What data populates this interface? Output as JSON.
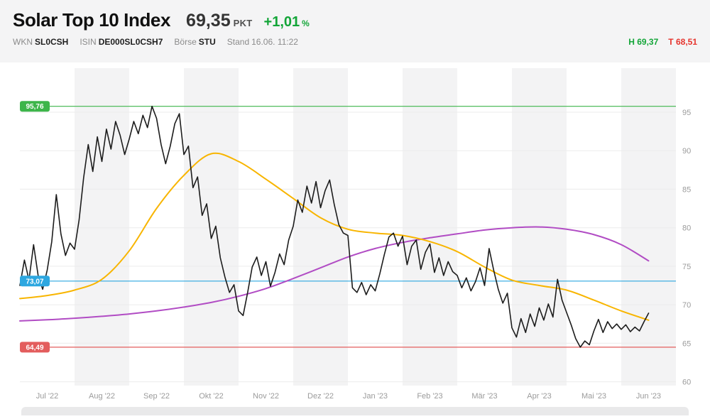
{
  "header": {
    "title": "Solar Top 10 Index",
    "price": "69,35",
    "unit": "PKT",
    "change": "+1,01",
    "change_unit": "%",
    "meta": [
      {
        "label": "WKN",
        "value": "SL0CSH"
      },
      {
        "label": "ISIN",
        "value": "DE000SL0CSH7"
      },
      {
        "label": "Börse",
        "value": "STU"
      },
      {
        "label": "Stand",
        "value": "16.06. 11:22"
      }
    ],
    "high_label": "H",
    "high_value": "69,37",
    "low_label": "T",
    "low_value": "68,51"
  },
  "colors": {
    "positive": "#13a538",
    "negative": "#e6352e",
    "stripe": "#f3f3f4",
    "grid": "#ececec",
    "tick_text": "#9b9b9b",
    "badge_text": "#ffffff"
  },
  "chart_data": {
    "type": "line",
    "title": "Solar Top 10 Index",
    "unit": "PKT",
    "x_labels": [
      "Jul '22",
      "Aug '22",
      "Sep '22",
      "Okt '22",
      "Nov '22",
      "Dez '22",
      "Jan '23",
      "Feb '23",
      "Mär '23",
      "Apr '23",
      "Mai '23",
      "Jun '23"
    ],
    "y_ticks": [
      60,
      65,
      70,
      75,
      80,
      85,
      90,
      95
    ],
    "ylim": [
      59.5,
      98.5
    ],
    "months_shown": 12,
    "months_with_data": 11.5,
    "grid": true,
    "legend": "none",
    "reference_lines": [
      {
        "name": "high-line",
        "value": 95.76,
        "label": "95,76",
        "color": "#3db54a"
      },
      {
        "name": "mid-line",
        "value": 73.07,
        "label": "73,07",
        "color": "#2da7e0"
      },
      {
        "name": "low-line",
        "value": 64.49,
        "label": "64,49",
        "color": "#e35d5d"
      }
    ],
    "series": [
      {
        "name": "ma-slow",
        "color": "#b14cc4",
        "width": 2,
        "smooth": true,
        "values": [
          67.9,
          68.05,
          68.25,
          68.5,
          68.8,
          69.2,
          69.7,
          70.3,
          71.1,
          72.1,
          73.4,
          74.8,
          76.2,
          77.3,
          78.1,
          78.7,
          79.2,
          79.7,
          80.0,
          80.1,
          79.8,
          79.1,
          77.8,
          75.7
        ]
      },
      {
        "name": "ma-fast",
        "color": "#f8b500",
        "width": 2,
        "smooth": true,
        "values": [
          70.8,
          71.2,
          71.9,
          73.3,
          77.0,
          82.5,
          86.8,
          89.6,
          88.6,
          86.3,
          83.8,
          81.3,
          79.8,
          79.3,
          79.0,
          78.2,
          76.9,
          74.9,
          73.2,
          72.5,
          71.9,
          70.6,
          69.2,
          68.0
        ]
      },
      {
        "name": "index-price",
        "color": "#1c1c1c",
        "width": 1.6,
        "smooth": false,
        "values": [
          72.5,
          75.8,
          73.2,
          77.8,
          73.8,
          72.0,
          74.5,
          78.2,
          84.3,
          79.2,
          76.4,
          78.0,
          77.2,
          81.0,
          86.5,
          90.8,
          87.3,
          91.8,
          88.6,
          92.8,
          90.2,
          93.8,
          92.0,
          89.5,
          91.5,
          93.8,
          92.2,
          94.6,
          93.0,
          95.76,
          94.2,
          90.8,
          88.3,
          90.6,
          93.5,
          94.8,
          89.5,
          90.6,
          85.2,
          86.6,
          81.6,
          83.1,
          78.6,
          80.2,
          76.1,
          73.6,
          71.6,
          72.6,
          69.2,
          68.6,
          71.6,
          74.9,
          76.2,
          73.8,
          75.6,
          72.4,
          74.2,
          76.6,
          75.2,
          78.4,
          80.2,
          83.6,
          82.0,
          85.4,
          83.2,
          86.0,
          82.6,
          84.8,
          86.2,
          83.0,
          80.4,
          79.3,
          79.0,
          72.2,
          71.6,
          72.9,
          71.3,
          72.6,
          71.8,
          74.0,
          76.5,
          78.8,
          79.3,
          77.6,
          78.9,
          75.2,
          77.6,
          78.4,
          74.6,
          76.8,
          77.9,
          74.2,
          76.1,
          73.8,
          75.6,
          74.3,
          73.8,
          72.2,
          73.5,
          71.8,
          73.0,
          74.8,
          72.5,
          77.3,
          74.5,
          72.0,
          70.2,
          71.5,
          67.0,
          65.8,
          68.2,
          66.4,
          68.8,
          67.2,
          69.6,
          68.0,
          70.1,
          68.4,
          73.3,
          70.6,
          69.0,
          67.4,
          65.6,
          64.49,
          65.3,
          64.8,
          66.6,
          68.1,
          66.4,
          67.8,
          66.9,
          67.5,
          66.8,
          67.4,
          66.5,
          67.1,
          66.6,
          67.8,
          68.9
        ]
      }
    ]
  }
}
